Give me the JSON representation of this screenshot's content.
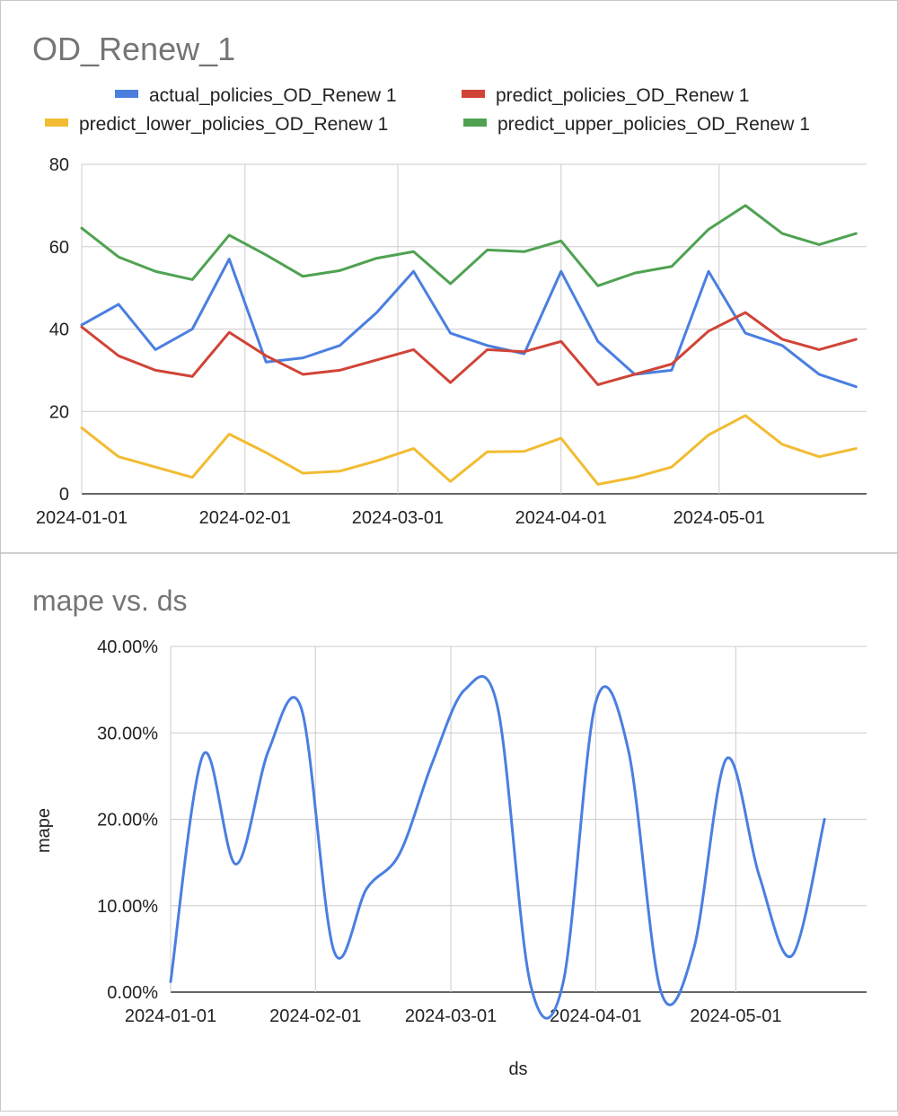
{
  "chart_data": [
    {
      "type": "line",
      "title": "OD_Renew_1",
      "xlabel": "",
      "ylabel": "",
      "ylim": [
        0,
        80
      ],
      "yticks": [
        "0",
        "20",
        "40",
        "60",
        "80"
      ],
      "xlim": [
        "2024-01-01",
        "2024-05-29"
      ],
      "xticks": [
        "2024-01-01",
        "2024-02-01",
        "2024-03-01",
        "2024-04-01",
        "2024-05-01"
      ],
      "grid": true,
      "legend": "top",
      "x": [
        "2024-01-01",
        "2024-01-08",
        "2024-01-15",
        "2024-01-22",
        "2024-01-29",
        "2024-02-05",
        "2024-02-12",
        "2024-02-19",
        "2024-02-26",
        "2024-03-04",
        "2024-03-11",
        "2024-03-18",
        "2024-03-25",
        "2024-04-01",
        "2024-04-08",
        "2024-04-15",
        "2024-04-22",
        "2024-04-29",
        "2024-05-06",
        "2024-05-13",
        "2024-05-20",
        "2024-05-27"
      ],
      "series": [
        {
          "name": "actual_policies_OD_Renew 1",
          "color": "#4a7fe0",
          "values": [
            41,
            46,
            35,
            40,
            57,
            32,
            33,
            36,
            44,
            54,
            39,
            36,
            34,
            54,
            37,
            29,
            30,
            54,
            39,
            36,
            29,
            26
          ]
        },
        {
          "name": "predict_policies_OD_Renew 1",
          "color": "#d04437",
          "values": [
            40.5,
            33.5,
            30,
            28.5,
            39.2,
            33.5,
            29,
            30,
            32.5,
            35,
            27,
            35,
            34.5,
            37,
            26.5,
            29,
            31.5,
            39.5,
            44,
            37.5,
            35,
            37.5
          ]
        },
        {
          "name": "predict_lower_policies_OD_Renew 1",
          "color": "#f2bc32",
          "values": [
            16,
            9,
            6.5,
            4,
            14.5,
            10,
            5,
            5.5,
            8,
            11,
            3,
            10.2,
            10.3,
            13.5,
            2.3,
            4,
            6.5,
            14.3,
            19,
            12,
            9,
            11
          ]
        },
        {
          "name": "predict_upper_policies_OD_Renew 1",
          "color": "#4fa252",
          "values": [
            64.5,
            57.5,
            54,
            52,
            62.8,
            58,
            52.8,
            54.2,
            57.2,
            58.8,
            51,
            59.2,
            58.8,
            61.4,
            50.5,
            53.6,
            55.2,
            64.2,
            70,
            63.2,
            60.5,
            63.2
          ]
        }
      ]
    },
    {
      "type": "line",
      "title": "mape vs. ds",
      "xlabel": "ds",
      "ylabel": "mape",
      "ylim": [
        0,
        0.4
      ],
      "yticks": [
        "0.00%",
        "10.00%",
        "20.00%",
        "30.00%",
        "40.00%"
      ],
      "xlim": [
        "2024-01-01",
        "2024-05-29"
      ],
      "xticks": [
        "2024-01-01",
        "2024-02-01",
        "2024-03-01",
        "2024-04-01",
        "2024-05-01"
      ],
      "grid": true,
      "legend": "none",
      "smooth": true,
      "x": [
        "2024-01-01",
        "2024-01-08",
        "2024-01-15",
        "2024-01-22",
        "2024-01-29",
        "2024-02-05",
        "2024-02-12",
        "2024-02-19",
        "2024-02-26",
        "2024-03-04",
        "2024-03-11",
        "2024-03-18",
        "2024-03-25",
        "2024-04-01",
        "2024-04-08",
        "2024-04-15",
        "2024-04-22",
        "2024-04-29",
        "2024-05-06",
        "2024-05-13",
        "2024-05-20"
      ],
      "series": [
        {
          "name": "mape",
          "color": "#4a7fe0",
          "values": [
            0.012,
            0.275,
            0.148,
            0.28,
            0.328,
            0.047,
            0.12,
            0.16,
            0.265,
            0.35,
            0.33,
            0.01,
            0.01,
            0.335,
            0.28,
            0.0,
            0.05,
            0.27,
            0.135,
            0.042,
            0.2
          ]
        }
      ]
    }
  ]
}
